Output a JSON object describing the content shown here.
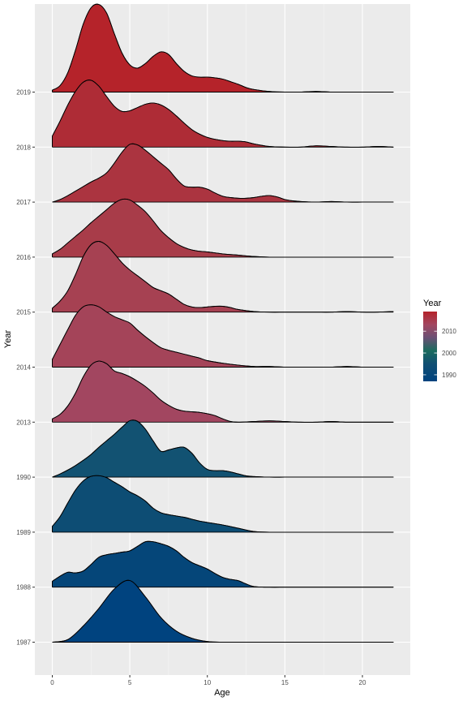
{
  "chart_data": {
    "type": "ridgeline",
    "xlabel": "Age",
    "ylabel": "Year",
    "xlim": [
      -1,
      23
    ],
    "x_ticks": [
      0,
      5,
      10,
      15,
      20
    ],
    "x_tick_labels": [
      "0",
      "5",
      "10",
      "15",
      "20"
    ],
    "grid": true,
    "legend": {
      "title": "Year",
      "placement": "right",
      "ticks": [
        1990,
        2000,
        2010
      ],
      "tick_labels": [
        "1990",
        "2000",
        "2010"
      ],
      "range": [
        1987,
        2019
      ],
      "colors": [
        {
          "year": 1987,
          "color": "#00437f"
        },
        {
          "year": 1995,
          "color": "#114f72"
        },
        {
          "year": 2001,
          "color": "#1a6b5e"
        },
        {
          "year": 2007,
          "color": "#6a5074"
        },
        {
          "year": 2013,
          "color": "#a24660"
        },
        {
          "year": 2019,
          "color": "#b5232a"
        }
      ]
    },
    "series": [
      {
        "name": "1987",
        "color": "#00437f",
        "x": [
          0,
          1,
          2,
          3,
          4,
          5,
          6,
          7,
          8,
          9,
          10,
          11,
          12,
          13,
          14,
          15,
          16,
          17,
          18,
          19,
          20,
          21,
          22
        ],
        "density": [
          0.0,
          0.04,
          0.25,
          0.52,
          0.82,
          0.95,
          0.7,
          0.38,
          0.17,
          0.06,
          0.01,
          0.0,
          0,
          0,
          0,
          0,
          0,
          0,
          0,
          0,
          0,
          0,
          0
        ]
      },
      {
        "name": "1988",
        "color": "#054679",
        "x": [
          0,
          0.5,
          1,
          1.5,
          2,
          2.5,
          3,
          3.5,
          4,
          4.5,
          5,
          5.5,
          6,
          6.5,
          7,
          7.5,
          8,
          8.5,
          9,
          9.5,
          10,
          10.5,
          11,
          11.5,
          12,
          12.5,
          13,
          14,
          15,
          16,
          17,
          18,
          19,
          20,
          21,
          22
        ],
        "density": [
          0.09,
          0.17,
          0.23,
          0.22,
          0.25,
          0.35,
          0.46,
          0.5,
          0.52,
          0.54,
          0.56,
          0.63,
          0.7,
          0.7,
          0.67,
          0.63,
          0.56,
          0.46,
          0.38,
          0.33,
          0.28,
          0.21,
          0.15,
          0.12,
          0.1,
          0.05,
          0.01,
          0,
          0,
          0,
          0,
          0,
          0,
          0,
          0,
          0
        ]
      },
      {
        "name": "1989",
        "color": "#0d4d74",
        "x": [
          0,
          0.5,
          1,
          1.5,
          2,
          2.5,
          3,
          3.5,
          4,
          4.5,
          5,
          5.5,
          6,
          6.5,
          7,
          7.5,
          8,
          8.5,
          9,
          9.5,
          10,
          11,
          12,
          13,
          14,
          15,
          16,
          17,
          18,
          19,
          20,
          21,
          22
        ],
        "density": [
          0.09,
          0.24,
          0.45,
          0.65,
          0.79,
          0.86,
          0.87,
          0.84,
          0.77,
          0.7,
          0.62,
          0.56,
          0.48,
          0.37,
          0.3,
          0.27,
          0.25,
          0.23,
          0.2,
          0.17,
          0.15,
          0.11,
          0.06,
          0.01,
          0,
          0,
          0,
          0,
          0,
          0,
          0,
          0,
          0
        ]
      },
      {
        "name": "1990",
        "color": "#125272",
        "x": [
          0,
          0.5,
          1,
          1.5,
          2,
          2.5,
          3,
          3.5,
          4,
          4.5,
          5,
          5.5,
          6,
          6.5,
          7,
          7.5,
          8,
          8.5,
          9,
          9.5,
          10,
          10.5,
          11,
          11.5,
          12,
          12.5,
          13,
          14,
          15,
          16,
          17,
          18,
          19,
          20,
          21,
          22
        ],
        "density": [
          0.0,
          0.05,
          0.11,
          0.18,
          0.26,
          0.35,
          0.46,
          0.56,
          0.66,
          0.77,
          0.87,
          0.86,
          0.74,
          0.56,
          0.4,
          0.42,
          0.45,
          0.46,
          0.37,
          0.22,
          0.12,
          0.1,
          0.1,
          0.08,
          0.05,
          0.02,
          0.01,
          0,
          0,
          0,
          0,
          0,
          0,
          0,
          0,
          0
        ]
      },
      {
        "name": "2013",
        "color": "#a24660",
        "x": [
          0,
          0.5,
          1,
          1.5,
          2,
          2.5,
          3,
          3.5,
          4,
          4.5,
          5,
          5.5,
          6,
          6.5,
          7,
          7.5,
          8,
          8.5,
          9,
          9.5,
          10,
          10.5,
          11,
          11.5,
          12,
          13,
          14,
          15,
          16,
          17,
          18,
          19,
          20,
          21,
          22
        ],
        "density": [
          0.05,
          0.12,
          0.25,
          0.45,
          0.7,
          0.88,
          0.94,
          0.9,
          0.79,
          0.75,
          0.7,
          0.63,
          0.55,
          0.45,
          0.34,
          0.26,
          0.2,
          0.17,
          0.16,
          0.15,
          0.13,
          0.1,
          0.05,
          0.01,
          0.0,
          0.01,
          0.02,
          0.01,
          0.0,
          0.0,
          0.01,
          0.0,
          0.0,
          0,
          0
        ]
      },
      {
        "name": "2014",
        "color": "#a44459",
        "x": [
          0,
          0.5,
          1,
          1.5,
          2,
          2.5,
          3,
          3.5,
          4,
          4.5,
          5,
          5.5,
          6,
          6.5,
          7,
          7.5,
          8,
          8.5,
          9,
          9.5,
          10,
          11,
          12,
          13,
          14,
          15,
          16,
          17,
          18,
          19,
          20,
          21,
          22
        ],
        "density": [
          0.12,
          0.35,
          0.58,
          0.8,
          0.93,
          0.96,
          0.93,
          0.85,
          0.78,
          0.73,
          0.68,
          0.57,
          0.47,
          0.38,
          0.3,
          0.26,
          0.23,
          0.2,
          0.17,
          0.14,
          0.1,
          0.06,
          0.03,
          0.01,
          0.01,
          0.0,
          0.0,
          0.0,
          0.0,
          0.01,
          0.0,
          0.0,
          0
        ]
      },
      {
        "name": "2015",
        "color": "#a64152",
        "x": [
          0,
          0.5,
          1,
          1.5,
          2,
          2.5,
          3,
          3.5,
          4,
          4.5,
          5,
          5.5,
          6,
          6.5,
          7,
          7.5,
          8,
          8.5,
          9,
          9.5,
          10,
          10.5,
          11,
          11.5,
          12,
          13,
          14,
          15,
          16,
          17,
          18,
          19,
          20,
          21,
          22
        ],
        "density": [
          0.06,
          0.17,
          0.33,
          0.58,
          0.86,
          1.04,
          1.09,
          1.03,
          0.9,
          0.76,
          0.65,
          0.56,
          0.47,
          0.38,
          0.33,
          0.28,
          0.2,
          0.12,
          0.08,
          0.07,
          0.08,
          0.09,
          0.09,
          0.07,
          0.04,
          0.01,
          0.0,
          0.0,
          0.0,
          0.0,
          0.0,
          0.01,
          0.0,
          0.0,
          0.01
        ]
      },
      {
        "name": "2016",
        "color": "#a83c49",
        "x": [
          0,
          0.5,
          1,
          1.5,
          2,
          2.5,
          3,
          3.5,
          4,
          4.5,
          5,
          5.5,
          6,
          6.5,
          7,
          7.5,
          8,
          8.5,
          9,
          9.5,
          10,
          11,
          12,
          13,
          14,
          15,
          16,
          17,
          18,
          19,
          20,
          21,
          22
        ],
        "density": [
          0.05,
          0.12,
          0.22,
          0.32,
          0.42,
          0.53,
          0.63,
          0.73,
          0.83,
          0.89,
          0.88,
          0.8,
          0.7,
          0.56,
          0.41,
          0.3,
          0.21,
          0.15,
          0.11,
          0.09,
          0.08,
          0.05,
          0.03,
          0.01,
          0.0,
          0.0,
          0,
          0,
          0,
          0,
          0,
          0,
          0
        ]
      },
      {
        "name": "2017",
        "color": "#ab3440",
        "x": [
          0,
          0.5,
          1,
          1.5,
          2,
          2.5,
          3,
          3.5,
          4,
          4.5,
          5,
          5.5,
          6,
          6.5,
          7,
          7.5,
          8,
          8.5,
          9,
          9.5,
          10,
          10.5,
          11,
          11.5,
          12,
          12.5,
          13,
          13.5,
          14,
          14.5,
          15,
          15.5,
          16,
          17,
          18,
          19,
          20,
          21,
          22
        ],
        "density": [
          0.0,
          0.04,
          0.1,
          0.17,
          0.24,
          0.31,
          0.37,
          0.45,
          0.6,
          0.77,
          0.89,
          0.88,
          0.8,
          0.7,
          0.6,
          0.5,
          0.36,
          0.25,
          0.23,
          0.23,
          0.2,
          0.14,
          0.09,
          0.07,
          0.06,
          0.06,
          0.07,
          0.09,
          0.1,
          0.08,
          0.04,
          0.02,
          0.01,
          0.0,
          0.01,
          0.0,
          0.0,
          0.0,
          0
        ]
      },
      {
        "name": "2018",
        "color": "#ae2c36",
        "x": [
          0,
          0.5,
          1,
          1.5,
          2,
          2.5,
          3,
          3.5,
          4,
          4.5,
          5,
          5.5,
          6,
          6.5,
          7,
          7.5,
          8,
          8.5,
          9,
          9.5,
          10,
          10.5,
          11,
          11.5,
          12,
          12.5,
          13,
          14,
          15,
          16,
          17,
          18,
          19,
          20,
          21,
          22
        ],
        "density": [
          0.17,
          0.4,
          0.65,
          0.86,
          1.0,
          1.03,
          0.94,
          0.78,
          0.63,
          0.55,
          0.56,
          0.61,
          0.66,
          0.68,
          0.65,
          0.58,
          0.48,
          0.37,
          0.27,
          0.2,
          0.15,
          0.12,
          0.1,
          0.09,
          0.09,
          0.08,
          0.05,
          0.01,
          0.0,
          0.0,
          0.02,
          0.01,
          0.0,
          0.0,
          0.01,
          0.0
        ]
      },
      {
        "name": "2019",
        "color": "#b5232a",
        "x": [
          0,
          0.5,
          1,
          1.5,
          2,
          2.5,
          3,
          3.5,
          4,
          4.5,
          5,
          5.5,
          6,
          6.5,
          7,
          7.5,
          8,
          8.5,
          9,
          9.5,
          10,
          10.5,
          11,
          11.5,
          12,
          12.5,
          13,
          14,
          15,
          16,
          17,
          18,
          19,
          20,
          21,
          22
        ],
        "density": [
          0.03,
          0.1,
          0.3,
          0.65,
          1.05,
          1.3,
          1.35,
          1.22,
          0.9,
          0.6,
          0.42,
          0.37,
          0.44,
          0.55,
          0.62,
          0.58,
          0.44,
          0.32,
          0.25,
          0.23,
          0.23,
          0.22,
          0.2,
          0.16,
          0.12,
          0.07,
          0.04,
          0.01,
          0.0,
          0.0,
          0.01,
          0.0,
          0.0,
          0.0,
          0.0,
          0.0
        ]
      }
    ]
  }
}
